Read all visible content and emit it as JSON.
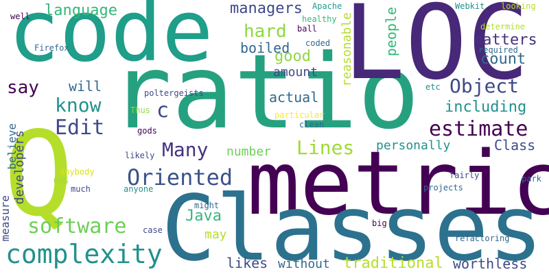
{
  "palette": {
    "background": "#ffffff",
    "dark_purple": "#440154",
    "indigo": "#3e4989",
    "teal_blue": "#31688e",
    "teal": "#26828e",
    "green": "#1f9e89",
    "emerald": "#35b779",
    "light_green": "#6ece58",
    "lime": "#b5de2b",
    "yellow": "#fde725"
  },
  "words": [
    {
      "text": "code",
      "color": "#1f9e89"
    },
    {
      "text": "ratio",
      "color": "#26a180"
    },
    {
      "text": "LOC",
      "color": "#482878"
    },
    {
      "text": "metric",
      "color": "#440154"
    },
    {
      "text": "Classes",
      "color": "#2c728e"
    },
    {
      "text": "Q",
      "color": "#b5de2b"
    },
    {
      "text": "complexity",
      "color": "#21918c"
    },
    {
      "text": "software",
      "color": "#6ece58"
    },
    {
      "text": "Oriented",
      "color": "#3b528b"
    },
    {
      "text": "Many",
      "color": "#46327e"
    },
    {
      "text": "Lines",
      "color": "#a0da39"
    },
    {
      "text": "estimate",
      "color": "#440154"
    },
    {
      "text": "Object",
      "color": "#3e4989"
    },
    {
      "text": "Edit",
      "color": "#3e4989"
    },
    {
      "text": "know",
      "color": "#21918c"
    },
    {
      "text": "c",
      "color": "#3e4989"
    },
    {
      "text": "say",
      "color": "#440154"
    },
    {
      "text": "language",
      "color": "#35b779"
    },
    {
      "text": "managers",
      "color": "#3e4989"
    },
    {
      "text": "hard",
      "color": "#8fd744"
    },
    {
      "text": "boiled",
      "color": "#31688e"
    },
    {
      "text": "good",
      "color": "#8fd744"
    },
    {
      "text": "amount",
      "color": "#3e4989"
    },
    {
      "text": "actual",
      "color": "#31688e"
    },
    {
      "text": "matters",
      "color": "#46327e"
    },
    {
      "text": "count",
      "color": "#31688e"
    },
    {
      "text": "people",
      "color": "#35b779"
    },
    {
      "text": "reasonable",
      "color": "#b5de2b"
    },
    {
      "text": "including",
      "color": "#21918c"
    },
    {
      "text": "personally",
      "color": "#21918c"
    },
    {
      "text": "Class",
      "color": "#3e4989"
    },
    {
      "text": "number",
      "color": "#6ece58"
    },
    {
      "text": "Java",
      "color": "#35b779"
    },
    {
      "text": "may",
      "color": "#b5de2b"
    },
    {
      "text": "likes",
      "color": "#3e4989"
    },
    {
      "text": "without",
      "color": "#31688e"
    },
    {
      "text": "traditional",
      "color": "#b5de2b"
    },
    {
      "text": "worthless",
      "color": "#3e4989"
    },
    {
      "text": "will",
      "color": "#31688e"
    },
    {
      "text": "developers",
      "color": "#3e4989"
    },
    {
      "text": "believe",
      "color": "#31688e"
    },
    {
      "text": "measure",
      "color": "#3e4989"
    },
    {
      "text": "Apache",
      "color": "#1f9e89"
    },
    {
      "text": "healthy",
      "color": "#35b779"
    },
    {
      "text": "ball",
      "color": "#440154"
    },
    {
      "text": "coded",
      "color": "#31688e"
    },
    {
      "text": "Webkit",
      "color": "#21918c"
    },
    {
      "text": "looking",
      "color": "#b5de2b"
    },
    {
      "text": "determine",
      "color": "#b5de2b"
    },
    {
      "text": "required",
      "color": "#31688e"
    },
    {
      "text": "well",
      "color": "#440154"
    },
    {
      "text": "Firefox",
      "color": "#31688e"
    },
    {
      "text": "poltergeists",
      "color": "#3e4989"
    },
    {
      "text": "Thus",
      "color": "#8fd744"
    },
    {
      "text": "gods",
      "color": "#440154"
    },
    {
      "text": "particular",
      "color": "#fde725"
    },
    {
      "text": "clean",
      "color": "#31688e"
    },
    {
      "text": "etc",
      "color": "#21918c"
    },
    {
      "text": "likely",
      "color": "#3e4989"
    },
    {
      "text": "anybody",
      "color": "#d8e219"
    },
    {
      "text": "OSS",
      "color": "#a0da39"
    },
    {
      "text": "much",
      "color": "#3e4989"
    },
    {
      "text": "anyone",
      "color": "#21918c"
    },
    {
      "text": "fairly",
      "color": "#3e4989"
    },
    {
      "text": "park",
      "color": "#31688e"
    },
    {
      "text": "projects",
      "color": "#31688e"
    },
    {
      "text": "might",
      "color": "#31688e"
    },
    {
      "text": "case",
      "color": "#3e4989"
    },
    {
      "text": "big",
      "color": "#440154"
    },
    {
      "text": "refactoring",
      "color": "#31688e"
    }
  ]
}
